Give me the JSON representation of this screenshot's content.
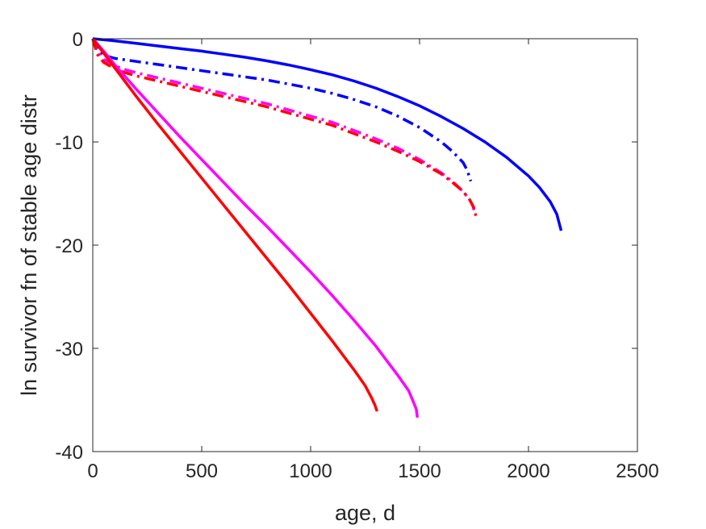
{
  "chart_data": {
    "type": "line",
    "title": "",
    "xlabel": "age, d",
    "ylabel": "ln survivor fn of stable age distr",
    "xlim": [
      0,
      2500
    ],
    "ylim": [
      -40,
      0
    ],
    "xticks": [
      0,
      500,
      1000,
      1500,
      2000,
      2500
    ],
    "xtick_labels": [
      "0",
      "500",
      "1000",
      "1500",
      "2000",
      "2500"
    ],
    "yticks": [
      0,
      -10,
      -20,
      -30,
      -40
    ],
    "ytick_labels": [
      "0",
      "-10",
      "-20",
      "-30",
      "-40"
    ],
    "grid": false,
    "legend": "none",
    "series": [
      {
        "color": "#0000ff",
        "style": "solid",
        "x": [
          0,
          100,
          200,
          300,
          400,
          500,
          600,
          700,
          800,
          900,
          1000,
          1100,
          1200,
          1300,
          1400,
          1500,
          1600,
          1700,
          1800,
          1900,
          2000,
          2050,
          2100,
          2130,
          2150
        ],
        "y": [
          0,
          -0.2,
          -0.45,
          -0.7,
          -0.95,
          -1.2,
          -1.5,
          -1.8,
          -2.15,
          -2.55,
          -3.0,
          -3.5,
          -4.1,
          -4.8,
          -5.6,
          -6.5,
          -7.55,
          -8.7,
          -10.0,
          -11.5,
          -13.3,
          -14.4,
          -15.8,
          -17.0,
          -18.6
        ]
      },
      {
        "color": "#0000ff",
        "style": "dashdot",
        "x": [
          0,
          20,
          50,
          100,
          200,
          300,
          400,
          500,
          600,
          700,
          800,
          900,
          1000,
          1100,
          1200,
          1300,
          1400,
          1500,
          1600,
          1650,
          1700,
          1720,
          1730,
          1735
        ],
        "y": [
          0,
          -1.0,
          -1.6,
          -1.9,
          -2.2,
          -2.5,
          -2.8,
          -3.1,
          -3.4,
          -3.7,
          -4.0,
          -4.4,
          -4.8,
          -5.3,
          -5.9,
          -6.6,
          -7.5,
          -8.6,
          -10.0,
          -10.9,
          -12.0,
          -12.8,
          -13.5,
          -13.8
        ]
      },
      {
        "color": "#ff00ff",
        "style": "dashdot",
        "x": [
          0,
          20,
          50,
          100,
          150,
          200,
          300,
          400,
          500,
          600,
          700,
          800,
          900,
          1000,
          1100,
          1200,
          1300,
          1400,
          1500,
          1600,
          1650,
          1700,
          1730,
          1745,
          1755
        ],
        "y": [
          0,
          -1.2,
          -2.0,
          -2.6,
          -3.0,
          -3.3,
          -3.8,
          -4.3,
          -4.8,
          -5.3,
          -5.8,
          -6.3,
          -6.9,
          -7.5,
          -8.1,
          -8.9,
          -9.7,
          -10.6,
          -11.7,
          -13.0,
          -13.8,
          -14.8,
          -15.6,
          -16.2,
          -17.0
        ]
      },
      {
        "color": "#ff0000",
        "style": "dashdot",
        "x": [
          0,
          20,
          50,
          100,
          150,
          200,
          300,
          400,
          500,
          600,
          700,
          800,
          900,
          1000,
          1100,
          1200,
          1300,
          1400,
          1500,
          1600,
          1650,
          1700,
          1730,
          1750,
          1760
        ],
        "y": [
          0,
          -1.5,
          -2.3,
          -2.9,
          -3.3,
          -3.6,
          -4.1,
          -4.6,
          -5.1,
          -5.6,
          -6.1,
          -6.6,
          -7.2,
          -7.8,
          -8.4,
          -9.2,
          -10.0,
          -10.9,
          -11.9,
          -13.1,
          -13.9,
          -14.8,
          -15.6,
          -16.4,
          -17.3
        ]
      },
      {
        "color": "#ff00ff",
        "style": "solid",
        "x": [
          0,
          50,
          100,
          200,
          300,
          400,
          500,
          600,
          700,
          800,
          900,
          1000,
          1100,
          1200,
          1300,
          1400,
          1450,
          1470,
          1485,
          1490
        ],
        "y": [
          0,
          -1.2,
          -2.5,
          -4.9,
          -7.2,
          -9.5,
          -11.7,
          -13.9,
          -16.1,
          -18.2,
          -20.4,
          -22.6,
          -24.9,
          -27.3,
          -29.8,
          -32.6,
          -34.1,
          -35.1,
          -35.9,
          -36.7
        ]
      },
      {
        "color": "#ff0000",
        "style": "solid",
        "x": [
          0,
          50,
          100,
          200,
          300,
          400,
          500,
          600,
          700,
          800,
          900,
          1000,
          1100,
          1200,
          1250,
          1280,
          1295,
          1305
        ],
        "y": [
          0,
          -1.4,
          -2.8,
          -5.6,
          -8.3,
          -10.9,
          -13.5,
          -16.1,
          -18.7,
          -21.3,
          -23.9,
          -26.6,
          -29.3,
          -32.1,
          -33.6,
          -34.8,
          -35.5,
          -36.1
        ]
      }
    ]
  }
}
